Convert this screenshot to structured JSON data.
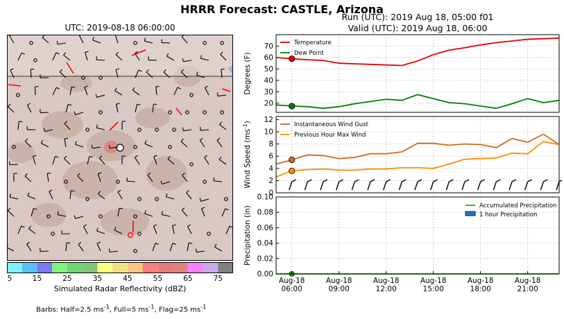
{
  "page": {
    "title": "HRRR Forecast: CASTLE, Arizona",
    "run_line": "Run (UTC): 2019 Aug 18, 05:00 f01",
    "valid_line": "Valid (UTC): 2019 Aug 18, 06:00"
  },
  "map": {
    "utc_label": "UTC: 2019-08-18 06:00:00",
    "colorbar": {
      "label": "Simulated Radar Reflectivity (dBZ)",
      "ticks": [
        5,
        15,
        25,
        35,
        45,
        55,
        65,
        75
      ],
      "range": [
        5,
        80
      ],
      "colors": [
        "#7ff2fd",
        "#5cbef8",
        "#7a7af2",
        "#7cf57c",
        "#6fd66f",
        "#7fc47f",
        "#fdfd7f",
        "#f2e27f",
        "#f9c77f",
        "#fb7f7f",
        "#e87a7a",
        "#e08080",
        "#fb7ffb",
        "#c8a8ec",
        "#808080"
      ]
    },
    "barbs_note": "Barbs: Half=2.5 ms",
    "barbs_note_rest": ", Full=5 ms",
    "barbs_note_end": ", Flag=25 ms",
    "superscript": "-1",
    "colors": {
      "terrain": "#d9c8c3",
      "terrain_dark": "#b79a8e",
      "station": "#ff0000"
    }
  },
  "chart_data": [
    {
      "type": "line",
      "ylabel": "Degrees (F)",
      "ylim": [
        12,
        80
      ],
      "yticks": [
        20,
        30,
        40,
        50,
        60,
        70
      ],
      "grid": true,
      "legend": "top-left",
      "x": [
        "05:00",
        "06:00",
        "07:00",
        "08:00",
        "09:00",
        "10:00",
        "11:00",
        "12:00",
        "13:00",
        "14:00",
        "15:00",
        "16:00",
        "17:00",
        "18:00",
        "19:00",
        "20:00",
        "21:00",
        "22:00",
        "23:00"
      ],
      "series": [
        {
          "name": "Temperature",
          "color": "#e00000",
          "values": [
            60,
            59,
            58,
            57.5,
            55,
            54.5,
            54,
            53.5,
            53,
            57,
            62.5,
            66.5,
            68.5,
            71,
            73,
            74.5,
            76,
            76.5,
            77
          ]
        },
        {
          "name": "Dew Point",
          "color": "#008000",
          "values": [
            18.5,
            17.5,
            17,
            15.5,
            17,
            19.5,
            21.5,
            23.5,
            22.5,
            27.5,
            24,
            20.5,
            19.5,
            17.5,
            15.5,
            19.5,
            24,
            20.5,
            22.5
          ]
        }
      ]
    },
    {
      "type": "line",
      "ylabel": "Wind Speed (ms",
      "ylabel_sup": "-1",
      "ylabel_end": ")",
      "ylim": [
        0,
        12.5
      ],
      "yticks": [
        0,
        2,
        4,
        6,
        8,
        10,
        12
      ],
      "grid": true,
      "legend": "top-left",
      "x": [
        "05:00",
        "06:00",
        "07:00",
        "08:00",
        "09:00",
        "10:00",
        "11:00",
        "12:00",
        "13:00",
        "14:00",
        "15:00",
        "16:00",
        "17:00",
        "18:00",
        "19:00",
        "20:00",
        "21:00",
        "22:00",
        "23:00"
      ],
      "series": [
        {
          "name": "Instantaneous Wind Gust",
          "color": "#d2691e",
          "values": [
            4.7,
            5.4,
            6.2,
            6.1,
            5.6,
            5.8,
            6.4,
            6.4,
            6.7,
            8.1,
            8.1,
            7.8,
            8.0,
            7.9,
            7.4,
            8.9,
            8.3,
            9.6,
            7.9
          ]
        },
        {
          "name": "Previous Hour Max Wind",
          "color": "#ff8c00",
          "values": [
            2.6,
            3.6,
            3.8,
            3.9,
            3.7,
            3.7,
            3.9,
            3.9,
            4.1,
            4.1,
            4.0,
            4.7,
            5.5,
            5.6,
            5.7,
            6.5,
            6.4,
            8.4,
            7.9
          ]
        }
      ]
    },
    {
      "type": "bar",
      "ylabel": "Precipitation (in)",
      "ylim": [
        0,
        0.1
      ],
      "yticks": [
        "0.00",
        "0.02",
        "0.04",
        "0.06",
        "0.08",
        "0.10"
      ],
      "grid": true,
      "legend": "top-right",
      "x": [
        "05:00",
        "06:00",
        "07:00",
        "08:00",
        "09:00",
        "10:00",
        "11:00",
        "12:00",
        "13:00",
        "14:00",
        "15:00",
        "16:00",
        "17:00",
        "18:00",
        "19:00",
        "20:00",
        "21:00",
        "22:00",
        "23:00"
      ],
      "series": [
        {
          "name": "Accumulated Precipitation",
          "color": "#00c000",
          "values": [
            0,
            0,
            0,
            0,
            0,
            0,
            0,
            0,
            0,
            0,
            0,
            0,
            0,
            0,
            0,
            0,
            0,
            0,
            0
          ]
        },
        {
          "name": "1 hour Precipitation",
          "color": "#1e78d0",
          "values": [
            0,
            0,
            0,
            0,
            0,
            0,
            0,
            0,
            0,
            0,
            0,
            0,
            0,
            0,
            0,
            0,
            0,
            0,
            0
          ]
        }
      ],
      "xtick_labels": [
        {
          "hour": 6,
          "date": "Aug-18",
          "time": "06:00"
        },
        {
          "hour": 9,
          "date": "Aug-18",
          "time": "09:00"
        },
        {
          "hour": 12,
          "date": "Aug-18",
          "time": "12:00"
        },
        {
          "hour": 15,
          "date": "Aug-18",
          "time": "15:00"
        },
        {
          "hour": 18,
          "date": "Aug-18",
          "time": "18:00"
        },
        {
          "hour": 21,
          "date": "Aug-18",
          "time": "21:00"
        }
      ]
    }
  ]
}
